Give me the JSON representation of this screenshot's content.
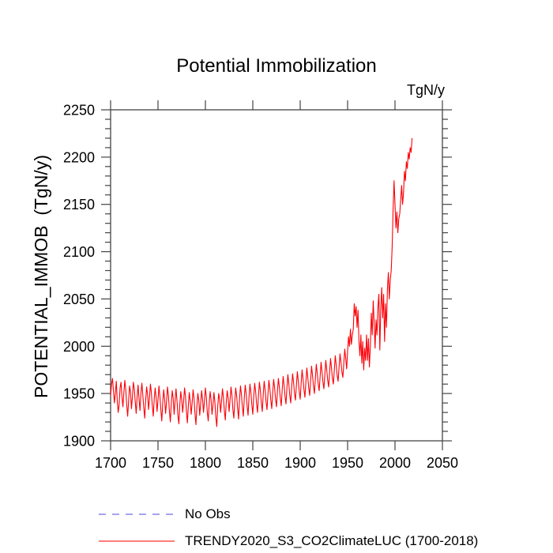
{
  "title": "Potential Immobilization",
  "units_label": "TgN/y",
  "y_axis_title": "POTENTIAL_IMMOB  (TgN/y)",
  "colors": {
    "background": "#ffffff",
    "axis": "#444444",
    "text": "#000000",
    "series_red": "#fb0007",
    "legend_no_obs_blue": "#8585e8",
    "legend_red": "#ff5050"
  },
  "legend": {
    "items": [
      {
        "label": "No Obs",
        "color": "#8585e8",
        "style": "dashed"
      },
      {
        "label": "TRENDY2020_S3_CO2ClimateLUC (1700-2018)",
        "color": "#ff5050",
        "style": "solid"
      }
    ]
  },
  "chart_data": {
    "type": "line",
    "title": "Potential Immobilization",
    "xlabel": "",
    "ylabel": "POTENTIAL_IMMOB (TgN/y)",
    "units": "TgN/y",
    "xlim": [
      1700,
      2050
    ],
    "ylim": [
      1900,
      2250
    ],
    "xticks": [
      1700,
      1750,
      1800,
      1850,
      1900,
      1950,
      2000,
      2050
    ],
    "yticks": [
      1900,
      1950,
      2000,
      2050,
      2100,
      2150,
      2200,
      2250
    ],
    "y_minor_step": 10,
    "grid": false,
    "legend_position": "bottom-left",
    "series": [
      {
        "name": "TRENDY2020_S3_CO2ClimateLUC (1700-2018)",
        "color": "#fb0007",
        "x_start": 1700,
        "x_step": 1,
        "values": [
          1948,
          1960,
          1966,
          1953,
          1940,
          1950,
          1963,
          1943,
          1930,
          1938,
          1956,
          1962,
          1946,
          1936,
          1951,
          1964,
          1954,
          1938,
          1926,
          1942,
          1958,
          1952,
          1934,
          1946,
          1962,
          1955,
          1941,
          1929,
          1947,
          1959,
          1944,
          1932,
          1950,
          1961,
          1948,
          1935,
          1924,
          1943,
          1957,
          1949,
          1933,
          1945,
          1960,
          1951,
          1937,
          1926,
          1944,
          1956,
          1946,
          1931,
          1943,
          1958,
          1947,
          1933,
          1921,
          1940,
          1954,
          1944,
          1929,
          1941,
          1957,
          1948,
          1932,
          1920,
          1939,
          1953,
          1945,
          1928,
          1942,
          1955,
          1943,
          1927,
          1918,
          1938,
          1952,
          1944,
          1930,
          1941,
          1956,
          1947,
          1931,
          1919,
          1937,
          1951,
          1942,
          1928,
          1940,
          1954,
          1945,
          1929,
          1917,
          1936,
          1950,
          1943,
          1927,
          1939,
          1953,
          1944,
          1930,
          1942,
          1956,
          1946,
          1930,
          1921,
          1940,
          1952,
          1943,
          1928,
          1938,
          1951,
          1941,
          1925,
          1915,
          1936,
          1950,
          1944,
          1930,
          1942,
          1955,
          1946,
          1932,
          1922,
          1941,
          1953,
          1945,
          1931,
          1943,
          1957,
          1948,
          1933,
          1924,
          1942,
          1956,
          1947,
          1934,
          1923,
          1944,
          1958,
          1949,
          1936,
          1926,
          1945,
          1959,
          1950,
          1937,
          1927,
          1946,
          1960,
          1951,
          1938,
          1928,
          1947,
          1961,
          1952,
          1939,
          1930,
          1948,
          1962,
          1953,
          1940,
          1931,
          1949,
          1963,
          1954,
          1941,
          1933,
          1950,
          1964,
          1955,
          1943,
          1934,
          1951,
          1965,
          1956,
          1944,
          1936,
          1953,
          1966,
          1957,
          1945,
          1937,
          1954,
          1968,
          1959,
          1947,
          1939,
          1956,
          1970,
          1960,
          1948,
          1940,
          1957,
          1971,
          1962,
          1950,
          1943,
          1959,
          1973,
          1963,
          1952,
          1944,
          1961,
          1975,
          1965,
          1954,
          1946,
          1962,
          1977,
          1967,
          1956,
          1948,
          1964,
          1979,
          1969,
          1958,
          1950,
          1966,
          1981,
          1971,
          1960,
          1953,
          1968,
          1983,
          1973,
          1962,
          1955,
          1970,
          1985,
          1975,
          1964,
          1957,
          1972,
          1987,
          1977,
          1966,
          1960,
          1975,
          1990,
          1980,
          1969,
          1963,
          1978,
          1992,
          1983,
          1973,
          1967,
          1982,
          1997,
          1987,
          1976,
          1995,
          2010,
          2000,
          2018,
          2002,
          2012,
          2018,
          2045,
          2032,
          2042,
          2020,
          2038,
          2005,
          1990,
          2012,
          1982,
          2005,
          1975,
          1998,
          1985,
          2012,
          1985,
          2008,
          1978,
          2000,
          2035,
          2012,
          2048,
          2025,
          1998,
          2028,
          2012,
          2042,
          2055,
          1996,
          2040,
          2062,
          2030,
          2055,
          2005,
          2045,
          2020,
          2060,
          2078,
          2050,
          2070,
          2080,
          2105,
          2145,
          2175,
          2150,
          2125,
          2142,
          2120,
          2135,
          2140,
          2155,
          2170,
          2150,
          2162,
          2185,
          2175,
          2195,
          2188,
          2205,
          2198,
          2210,
          2205,
          2220
        ]
      }
    ]
  }
}
